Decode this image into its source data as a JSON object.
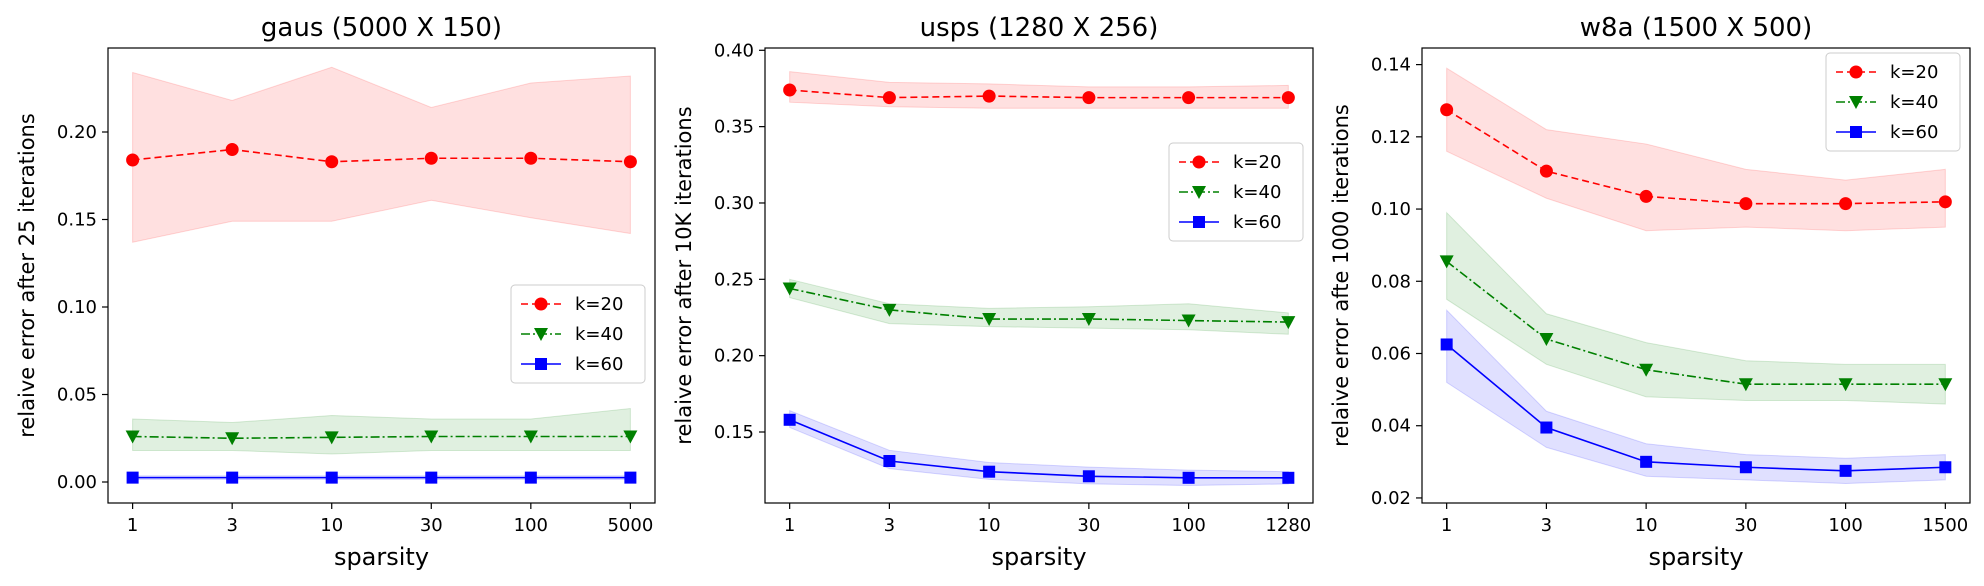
{
  "chart_data": [
    {
      "type": "line",
      "title": "gaus (5000 X 150)",
      "xlabel": "sparsity",
      "ylabel": "relaive error after 25 iterations",
      "x": [
        "1",
        "3",
        "10",
        "30",
        "100",
        "5000"
      ],
      "ylim": [
        -0.012,
        0.248
      ],
      "yticks": [
        0.0,
        0.05,
        0.1,
        0.15,
        0.2
      ],
      "yticklabels": [
        "0.00",
        "0.05",
        "0.10",
        "0.15",
        "0.20"
      ],
      "legend_position": "center-right",
      "series": [
        {
          "name": "k=20",
          "color": "#ff0000",
          "marker": "circle",
          "linestyle": "dashed",
          "values": [
            0.184,
            0.19,
            0.183,
            0.185,
            0.185,
            0.183
          ],
          "lower": [
            0.137,
            0.149,
            0.149,
            0.161,
            0.151,
            0.142
          ],
          "upper": [
            0.234,
            0.218,
            0.237,
            0.214,
            0.228,
            0.232
          ]
        },
        {
          "name": "k=40",
          "color": "#008000",
          "marker": "triangle-down",
          "linestyle": "dashdot",
          "values": [
            0.026,
            0.025,
            0.0255,
            0.026,
            0.026,
            0.026
          ],
          "lower": [
            0.018,
            0.018,
            0.016,
            0.018,
            0.018,
            0.018
          ],
          "upper": [
            0.036,
            0.034,
            0.038,
            0.036,
            0.036,
            0.042
          ]
        },
        {
          "name": "k=60",
          "color": "#0000ff",
          "marker": "square",
          "linestyle": "solid",
          "values": [
            0.0025,
            0.0025,
            0.0025,
            0.0025,
            0.0025,
            0.0025
          ],
          "lower": [
            0.0015,
            0.0015,
            0.0015,
            0.0015,
            0.0015,
            0.0015
          ],
          "upper": [
            0.0035,
            0.0035,
            0.0035,
            0.0035,
            0.0035,
            0.0035
          ]
        }
      ]
    },
    {
      "type": "line",
      "title": "usps (1280 X 256)",
      "xlabel": "sparsity",
      "ylabel": "relaive error after 10K iterations",
      "x": [
        "1",
        "3",
        "10",
        "30",
        "100",
        "1280"
      ],
      "ylim": [
        0.1035,
        0.4015
      ],
      "yticks": [
        0.15,
        0.2,
        0.25,
        0.3,
        0.35,
        0.4
      ],
      "yticklabels": [
        "0.15",
        "0.20",
        "0.25",
        "0.30",
        "0.35",
        "0.40"
      ],
      "legend_position": "upper-right",
      "series": [
        {
          "name": "k=20",
          "color": "#ff0000",
          "marker": "circle",
          "linestyle": "dashed",
          "values": [
            0.374,
            0.369,
            0.37,
            0.369,
            0.369,
            0.369
          ],
          "lower": [
            0.366,
            0.363,
            0.362,
            0.362,
            0.362,
            0.362
          ],
          "upper": [
            0.386,
            0.379,
            0.378,
            0.376,
            0.376,
            0.377
          ]
        },
        {
          "name": "k=40",
          "color": "#008000",
          "marker": "triangle-down",
          "linestyle": "dashdot",
          "values": [
            0.244,
            0.23,
            0.224,
            0.224,
            0.223,
            0.222
          ],
          "lower": [
            0.238,
            0.221,
            0.219,
            0.218,
            0.217,
            0.214
          ],
          "upper": [
            0.25,
            0.234,
            0.231,
            0.232,
            0.234,
            0.228
          ]
        },
        {
          "name": "k=60",
          "color": "#0000ff",
          "marker": "square",
          "linestyle": "solid",
          "values": [
            0.158,
            0.131,
            0.124,
            0.121,
            0.12,
            0.12
          ],
          "lower": [
            0.153,
            0.126,
            0.119,
            0.116,
            0.115,
            0.116
          ],
          "upper": [
            0.164,
            0.138,
            0.13,
            0.127,
            0.125,
            0.124
          ]
        }
      ]
    },
    {
      "type": "line",
      "title": "w8a (1500 X 500)",
      "xlabel": "sparsity",
      "ylabel": "relaive error afte 1000 iterations",
      "x": [
        "1",
        "3",
        "10",
        "30",
        "100",
        "1500"
      ],
      "ylim": [
        0.0186,
        0.1446
      ],
      "yticks": [
        0.02,
        0.04,
        0.06,
        0.08,
        0.1,
        0.12,
        0.14
      ],
      "yticklabels": [
        "0.02",
        "0.04",
        "0.06",
        "0.08",
        "0.10",
        "0.12",
        "0.14"
      ],
      "legend_position": "upper-right",
      "series": [
        {
          "name": "k=20",
          "color": "#ff0000",
          "marker": "circle",
          "linestyle": "dashed",
          "values": [
            0.1275,
            0.1105,
            0.1035,
            0.1015,
            0.1015,
            0.102
          ],
          "lower": [
            0.116,
            0.103,
            0.094,
            0.095,
            0.094,
            0.095
          ],
          "upper": [
            0.139,
            0.122,
            0.118,
            0.111,
            0.108,
            0.111
          ]
        },
        {
          "name": "k=40",
          "color": "#008000",
          "marker": "triangle-down",
          "linestyle": "dashdot",
          "values": [
            0.0855,
            0.064,
            0.0555,
            0.0515,
            0.0515,
            0.0515
          ],
          "lower": [
            0.075,
            0.057,
            0.048,
            0.047,
            0.047,
            0.046
          ],
          "upper": [
            0.099,
            0.071,
            0.063,
            0.058,
            0.057,
            0.057
          ]
        },
        {
          "name": "k=60",
          "color": "#0000ff",
          "marker": "square",
          "linestyle": "solid",
          "values": [
            0.0625,
            0.0395,
            0.03,
            0.0285,
            0.0275,
            0.0285
          ],
          "lower": [
            0.052,
            0.034,
            0.026,
            0.025,
            0.024,
            0.025
          ],
          "upper": [
            0.072,
            0.044,
            0.035,
            0.032,
            0.031,
            0.032
          ]
        }
      ]
    }
  ]
}
